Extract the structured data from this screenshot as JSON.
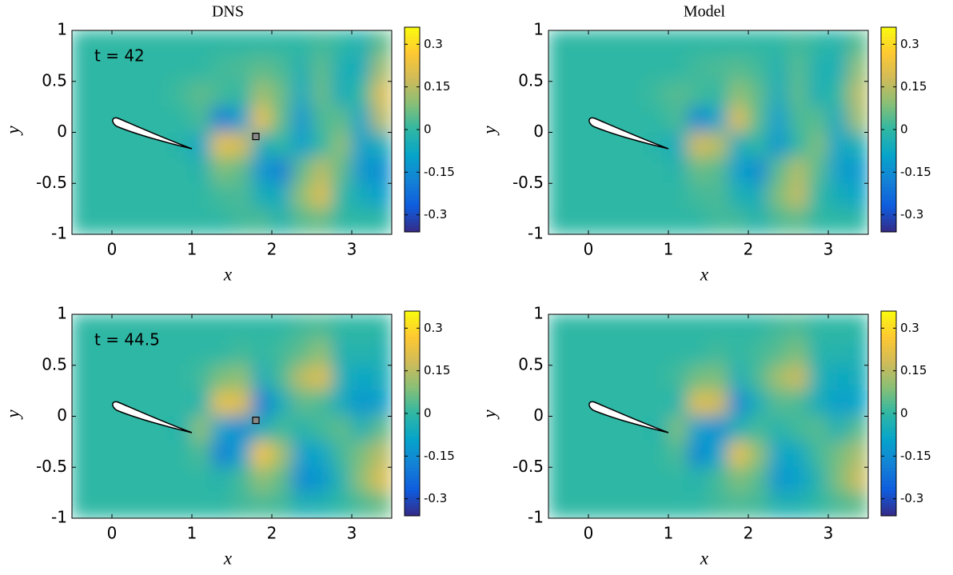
{
  "chart_data": [
    {
      "type": "heatmap",
      "title": "DNS",
      "annotation": "t = 42",
      "xlabel": "x",
      "ylabel": "y",
      "colormap": "parula",
      "xlim": [
        -0.5,
        3.5
      ],
      "ylim": [
        -1,
        1
      ],
      "xticks": [
        0,
        1,
        2,
        3
      ],
      "yticks": [
        -1,
        -0.5,
        0,
        0.5,
        1
      ],
      "clim": [
        -0.36,
        0.36
      ],
      "cticks": [
        -0.3,
        -0.15,
        0,
        0.15,
        0.3
      ],
      "probe": {
        "x": 1.8,
        "y": -0.04
      },
      "x": [
        -0.375,
        -0.125,
        0.125,
        0.375,
        0.625,
        0.875,
        1.125,
        1.375,
        1.625,
        1.875,
        2.125,
        2.375,
        2.625,
        2.875,
        3.125,
        3.375
      ],
      "y": [
        0.875,
        0.625,
        0.375,
        0.125,
        -0.125,
        -0.375,
        -0.625,
        -0.875
      ],
      "z": [
        [
          0,
          0,
          0,
          0,
          0,
          0,
          0,
          0,
          0,
          0,
          0,
          0,
          0.02,
          0,
          -0.03,
          0.05
        ],
        [
          0,
          0,
          0,
          0,
          0,
          0,
          0,
          0.02,
          0.03,
          0.05,
          0.03,
          -0.03,
          0.05,
          -0.04,
          -0.05,
          0.12
        ],
        [
          0,
          0,
          0,
          0,
          0,
          0.02,
          0.05,
          0.02,
          0,
          0.12,
          0.06,
          -0.06,
          0.06,
          -0.05,
          0,
          0.2
        ],
        [
          0,
          0,
          0,
          0,
          0,
          0,
          0.03,
          -0.18,
          -0.1,
          0.22,
          0.05,
          -0.12,
          0.03,
          0.05,
          -0.08,
          0.15
        ],
        [
          0,
          0,
          0,
          0,
          0,
          -0.02,
          -0.08,
          0.22,
          0.18,
          -0.05,
          0,
          -0.1,
          0,
          0.1,
          -0.1,
          -0.05
        ],
        [
          0,
          0,
          0,
          0,
          0,
          0,
          -0.02,
          0.08,
          0.05,
          -0.12,
          -0.18,
          0.05,
          0.15,
          0.05,
          -0.12,
          -0.15
        ],
        [
          0,
          0,
          0,
          0,
          0,
          0,
          0,
          0.02,
          0.03,
          -0.05,
          -0.06,
          0.1,
          0.2,
          0,
          -0.06,
          -0.1
        ],
        [
          0,
          0,
          0,
          0,
          0,
          0,
          0,
          0,
          0.02,
          0.03,
          -0.02,
          0.04,
          0.06,
          0,
          0,
          0
        ]
      ]
    },
    {
      "type": "heatmap",
      "title": "Model",
      "xlabel": "x",
      "ylabel": "y",
      "colormap": "parula",
      "xlim": [
        -0.5,
        3.5
      ],
      "ylim": [
        -1,
        1
      ],
      "xticks": [
        0,
        1,
        2,
        3
      ],
      "yticks": [
        -1,
        -0.5,
        0,
        0.5,
        1
      ],
      "clim": [
        -0.36,
        0.36
      ],
      "cticks": [
        -0.3,
        -0.15,
        0,
        0.15,
        0.3
      ],
      "x": [
        -0.375,
        -0.125,
        0.125,
        0.375,
        0.625,
        0.875,
        1.125,
        1.375,
        1.625,
        1.875,
        2.125,
        2.375,
        2.625,
        2.875,
        3.125,
        3.375
      ],
      "y": [
        0.875,
        0.625,
        0.375,
        0.125,
        -0.125,
        -0.375,
        -0.625,
        -0.875
      ],
      "z": [
        [
          0,
          0,
          0,
          0,
          0,
          0,
          0,
          0,
          0,
          0,
          0,
          0,
          0.02,
          0,
          -0.02,
          0.04
        ],
        [
          0,
          0,
          0,
          0,
          0,
          0,
          0,
          0.02,
          0.03,
          0.04,
          0.02,
          -0.03,
          0.04,
          -0.03,
          -0.04,
          0.1
        ],
        [
          0,
          0,
          0,
          0,
          0,
          0.02,
          0.04,
          0.02,
          0,
          0.1,
          0.05,
          -0.05,
          0.05,
          -0.04,
          0,
          0.15
        ],
        [
          0,
          0,
          0,
          0,
          0,
          0,
          0.03,
          -0.15,
          -0.08,
          0.2,
          0.04,
          -0.1,
          0.03,
          0.04,
          -0.06,
          0.12
        ],
        [
          0,
          0,
          0,
          0,
          0,
          -0.02,
          -0.06,
          0.18,
          0.15,
          -0.05,
          0,
          -0.12,
          0,
          0.08,
          -0.08,
          -0.04
        ],
        [
          0,
          0,
          0,
          0,
          0,
          0,
          -0.02,
          0.06,
          0.04,
          -0.1,
          -0.15,
          0.04,
          0.14,
          0.04,
          -0.1,
          -0.12
        ],
        [
          0,
          0,
          0,
          0,
          0,
          0,
          0,
          0.02,
          0.03,
          -0.04,
          -0.05,
          0.08,
          0.16,
          0,
          -0.05,
          -0.08
        ],
        [
          0,
          0,
          0,
          0,
          0,
          0,
          0,
          0,
          0.02,
          0.02,
          -0.02,
          0.03,
          0.05,
          0,
          0,
          0
        ]
      ]
    },
    {
      "type": "heatmap",
      "annotation": "t = 44.5",
      "xlabel": "x",
      "ylabel": "y",
      "colormap": "parula",
      "xlim": [
        -0.5,
        3.5
      ],
      "ylim": [
        -1,
        1
      ],
      "xticks": [
        0,
        1,
        2,
        3
      ],
      "yticks": [
        -1,
        -0.5,
        0,
        0.5,
        1
      ],
      "clim": [
        -0.36,
        0.36
      ],
      "cticks": [
        -0.3,
        -0.15,
        0,
        0.15,
        0.3
      ],
      "probe": {
        "x": 1.8,
        "y": -0.04
      },
      "x": [
        -0.375,
        -0.125,
        0.125,
        0.375,
        0.625,
        0.875,
        1.125,
        1.375,
        1.625,
        1.875,
        2.125,
        2.375,
        2.625,
        2.875,
        3.125,
        3.375
      ],
      "y": [
        0.875,
        0.625,
        0.375,
        0.125,
        -0.125,
        -0.375,
        -0.625,
        -0.875
      ],
      "z": [
        [
          0,
          0,
          0,
          0,
          0,
          0,
          0,
          0,
          0,
          0,
          0,
          0.02,
          0.03,
          0,
          0,
          0
        ],
        [
          0,
          0,
          0,
          0,
          0,
          0,
          0,
          0,
          0.02,
          0,
          0.02,
          0.05,
          0.1,
          -0.03,
          -0.02,
          -0.03
        ],
        [
          0,
          0,
          0,
          0,
          0,
          0,
          0.02,
          0.08,
          0.1,
          -0.05,
          0.03,
          0.15,
          0.2,
          -0.04,
          -0.08,
          -0.05
        ],
        [
          0,
          0,
          0,
          0,
          0,
          0,
          -0.02,
          0.22,
          0.2,
          -0.18,
          -0.05,
          0.05,
          0.03,
          -0.06,
          -0.12,
          -0.1
        ],
        [
          0,
          0,
          0,
          0,
          0,
          -0.02,
          0.1,
          -0.1,
          -0.15,
          -0.05,
          0.02,
          -0.02,
          0.02,
          0.05,
          -0.03,
          0.05
        ],
        [
          0,
          0,
          0,
          0,
          0,
          0,
          0.03,
          -0.18,
          -0.1,
          0.25,
          0.12,
          -0.1,
          -0.08,
          0.02,
          0.08,
          0.15
        ],
        [
          0,
          0,
          0,
          0,
          0,
          0,
          0,
          -0.02,
          0.02,
          0.1,
          0.05,
          -0.15,
          -0.12,
          -0.02,
          0.1,
          0.2
        ],
        [
          0,
          0,
          0,
          0,
          0,
          0,
          0,
          0,
          0.02,
          0.03,
          0.02,
          -0.04,
          -0.03,
          0,
          0.03,
          0.06
        ]
      ]
    },
    {
      "type": "heatmap",
      "xlabel": "x",
      "ylabel": "y",
      "colormap": "parula",
      "xlim": [
        -0.5,
        3.5
      ],
      "ylim": [
        -1,
        1
      ],
      "xticks": [
        0,
        1,
        2,
        3
      ],
      "yticks": [
        -1,
        -0.5,
        0,
        0.5,
        1
      ],
      "clim": [
        -0.36,
        0.36
      ],
      "cticks": [
        -0.3,
        -0.15,
        0,
        0.15,
        0.3
      ],
      "x": [
        -0.375,
        -0.125,
        0.125,
        0.375,
        0.625,
        0.875,
        1.125,
        1.375,
        1.625,
        1.875,
        2.125,
        2.375,
        2.625,
        2.875,
        3.125,
        3.375
      ],
      "y": [
        0.875,
        0.625,
        0.375,
        0.125,
        -0.125,
        -0.375,
        -0.625,
        -0.875
      ],
      "z": [
        [
          0,
          0,
          0,
          0,
          0,
          0,
          0,
          0,
          0,
          0,
          0,
          0.02,
          0.03,
          0,
          0,
          0
        ],
        [
          0,
          0,
          0,
          0,
          0,
          0,
          0,
          0,
          0.02,
          0,
          0.02,
          0.04,
          0.08,
          -0.02,
          -0.02,
          -0.03
        ],
        [
          0,
          0,
          0,
          0,
          0,
          0,
          0.02,
          0.07,
          0.08,
          -0.04,
          0.03,
          0.12,
          0.17,
          -0.03,
          -0.07,
          -0.05
        ],
        [
          0,
          0,
          0,
          0,
          0,
          0,
          -0.02,
          0.2,
          0.18,
          -0.15,
          -0.04,
          0.04,
          0.03,
          -0.05,
          -0.1,
          -0.09
        ],
        [
          0,
          0,
          0,
          0,
          0,
          -0.02,
          0.08,
          -0.1,
          -0.14,
          -0.04,
          0.02,
          -0.02,
          0.02,
          0.04,
          -0.03,
          0.04
        ],
        [
          0,
          0,
          0,
          0,
          0,
          0,
          0.03,
          -0.16,
          -0.09,
          0.22,
          0.1,
          -0.08,
          -0.07,
          0.02,
          0.07,
          0.13
        ],
        [
          0,
          0,
          0,
          0,
          0,
          0,
          0,
          -0.02,
          0.02,
          0.08,
          0.04,
          -0.12,
          -0.1,
          -0.02,
          0.08,
          0.17
        ],
        [
          0,
          0,
          0,
          0,
          0,
          0,
          0,
          0,
          0.02,
          0.03,
          0.02,
          -0.03,
          -0.03,
          0,
          0.03,
          0.05
        ]
      ]
    }
  ]
}
